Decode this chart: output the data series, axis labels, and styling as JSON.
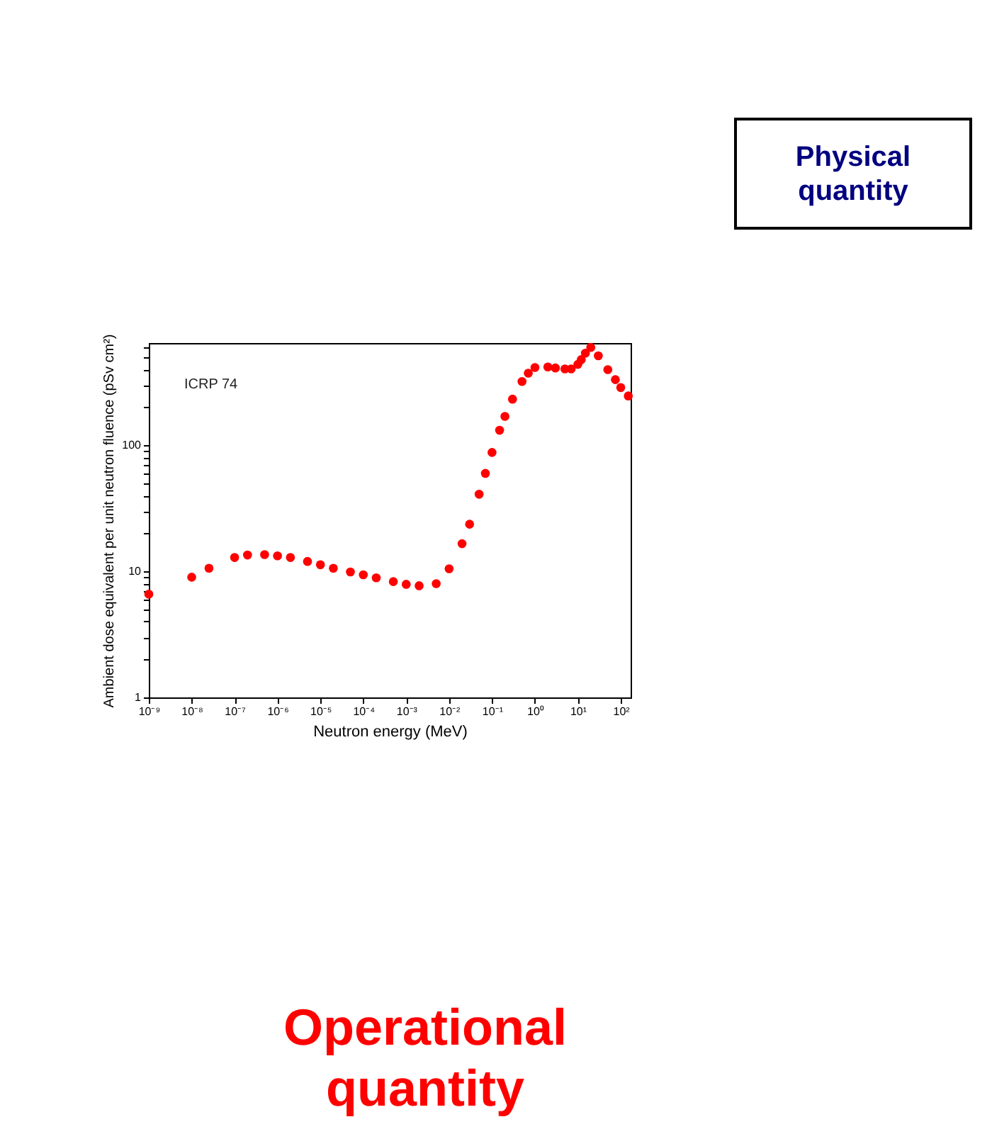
{
  "chart_data": {
    "type": "scatter",
    "xlabel": "Neutron energy (MeV)",
    "ylabel": "Ambient dose equivalent per unit neutron fluence (pSv cm²)",
    "log": "xy",
    "grid": false,
    "marker": "circle",
    "annotations": [
      "ICRP 74",
      "Physical quantity",
      "Operational quantity"
    ],
    "xlim": [
      1e-09,
      170
    ],
    "ylim": [
      1,
      650
    ],
    "xticks": [
      {
        "value": 1e-09,
        "label": "10⁻⁹"
      },
      {
        "value": 1e-08,
        "label": "10⁻⁸"
      },
      {
        "value": 1e-07,
        "label": "10⁻⁷"
      },
      {
        "value": 1e-06,
        "label": "10⁻⁶"
      },
      {
        "value": 1e-05,
        "label": "10⁻⁵"
      },
      {
        "value": 0.0001,
        "label": "10⁻⁴"
      },
      {
        "value": 0.001,
        "label": "10⁻³"
      },
      {
        "value": 0.01,
        "label": "10⁻²"
      },
      {
        "value": 0.1,
        "label": "10⁻¹"
      },
      {
        "value": 1,
        "label": "10⁰"
      },
      {
        "value": 10,
        "label": "10¹"
      },
      {
        "value": 100,
        "label": "10²"
      }
    ],
    "yticks": [
      1,
      {
        "value": 2,
        "label": null
      },
      {
        "value": 3,
        "label": null
      },
      {
        "value": 4,
        "label": null
      },
      {
        "value": 5,
        "label": null
      },
      {
        "value": 6,
        "label": null
      },
      {
        "value": 7,
        "label": null
      },
      {
        "value": 8,
        "label": null
      },
      {
        "value": 9,
        "label": null
      },
      10,
      {
        "value": 20,
        "label": null
      },
      {
        "value": 30,
        "label": null
      },
      {
        "value": 40,
        "label": null
      },
      {
        "value": 50,
        "label": null
      },
      {
        "value": 60,
        "label": null
      },
      {
        "value": 70,
        "label": null
      },
      {
        "value": 80,
        "label": null
      },
      {
        "value": 90,
        "label": null
      },
      100,
      {
        "value": 200,
        "label": null
      },
      {
        "value": 300,
        "label": null
      },
      {
        "value": 400,
        "label": null
      },
      {
        "value": 500,
        "label": null
      },
      {
        "value": 600,
        "label": null
      }
    ],
    "series": [
      {
        "color": "#ff0000",
        "x": [
          1e-09,
          1e-08,
          2.53e-08,
          1e-07,
          2e-07,
          5e-07,
          1e-06,
          2e-06,
          5e-06,
          1e-05,
          2e-05,
          5e-05,
          0.0001,
          0.0002,
          0.0005,
          0.001,
          0.002,
          0.005,
          0.01,
          0.02,
          0.03,
          0.05,
          0.07,
          0.1,
          0.15,
          0.2,
          0.3,
          0.5,
          0.7,
          1,
          2,
          3,
          5,
          7,
          10,
          12,
          15,
          20,
          30,
          50,
          75,
          100,
          150
        ],
        "values": [
          6.6,
          9.0,
          10.6,
          12.9,
          13.5,
          13.6,
          13.3,
          12.9,
          12.0,
          11.3,
          10.6,
          9.9,
          9.4,
          8.9,
          8.3,
          7.9,
          7.7,
          8.0,
          10.5,
          16.6,
          23.7,
          41,
          60,
          88,
          132,
          170,
          233,
          322,
          375,
          416,
          420,
          412,
          405,
          405,
          440,
          480,
          540,
          600,
          515,
          400,
          333,
          288,
          247
        ]
      }
    ]
  }
}
